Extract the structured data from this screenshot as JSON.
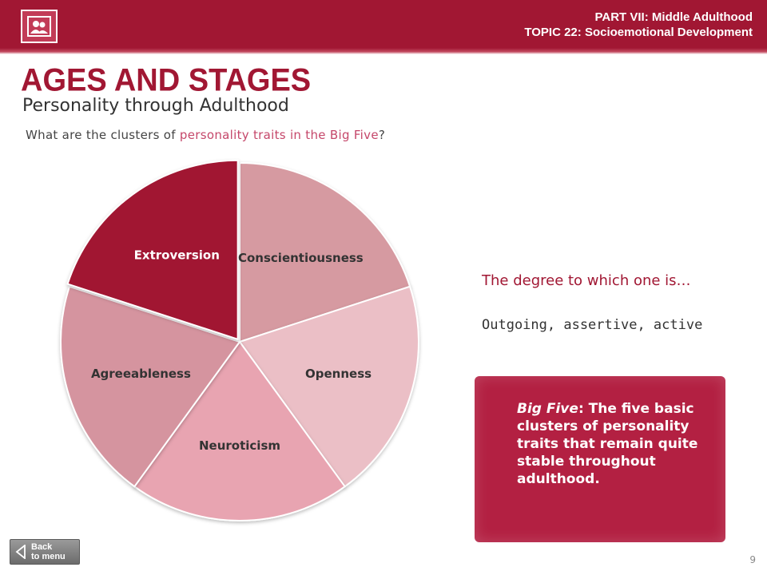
{
  "header": {
    "part_label": "PART VII:",
    "part_title": "Middle Adulthood",
    "topic_label": "TOPIC 22:",
    "topic_title": "Socioemotional Development",
    "logo_icon": "people-icon"
  },
  "slide": {
    "heading": "AGES AND STAGES",
    "subheading": "Personality through Adulthood",
    "question_pre": "What are the clusters of ",
    "question_highlight": "personality traits in the Big Five",
    "question_post": "?"
  },
  "chart_data": {
    "type": "pie",
    "categories": [
      "Conscientiousness",
      "Openness",
      "Neuroticism",
      "Agreeableness",
      "Extroversion"
    ],
    "values": [
      20,
      20,
      20,
      20,
      20
    ],
    "colors": [
      "#d69aa1",
      "#ebbfc6",
      "#e8a4b1",
      "#d5949f",
      "#a11733"
    ],
    "label_colors": [
      "#333333",
      "#333333",
      "#333333",
      "#333333",
      "#ffffff"
    ],
    "exploded": "Extroversion"
  },
  "detail": {
    "degree": "The degree to which one is…",
    "traits": "Outgoing, assertive, active"
  },
  "definition": {
    "term": "Big Five",
    "text": ": The five basic clusters of personality traits that remain quite stable throughout adulthood."
  },
  "nav": {
    "back_line1": "Back",
    "back_line2": "to menu",
    "back_icon": "triangle-left-icon"
  },
  "page_number": "9"
}
